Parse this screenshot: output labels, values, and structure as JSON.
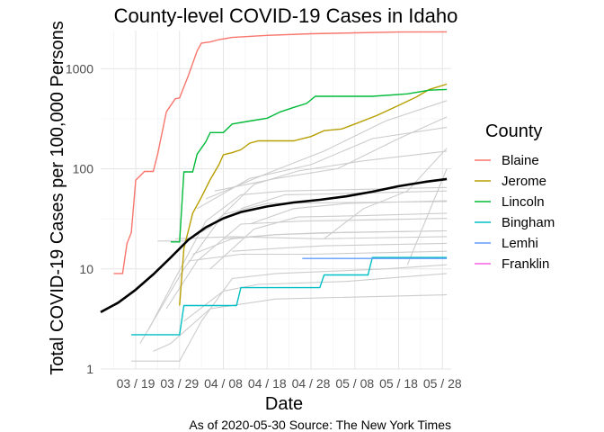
{
  "chart_data": {
    "type": "line",
    "title": "County-level COVID-19 Cases in Idaho",
    "xlabel": "Date",
    "ylabel": "Total COVID-19 Cases per 100,000 Persons",
    "y_scale": "log10",
    "ylim": [
      1,
      2400
    ],
    "y_ticks": [
      1,
      10,
      100,
      1000
    ],
    "y_tick_labels": [
      "1",
      "10",
      "100",
      "1000"
    ],
    "x_ticks": [
      "2020-03-19",
      "2020-03-29",
      "2020-04-08",
      "2020-04-18",
      "2020-04-28",
      "2020-05-08",
      "2020-05-18",
      "2020-05-28"
    ],
    "x_tick_labels": [
      "03 / 19",
      "03 / 29",
      "04 / 08",
      "04 / 18",
      "04 / 28",
      "05 / 08",
      "05 / 18",
      "05 / 28"
    ],
    "xlim": [
      "2020-03-11",
      "2020-05-30"
    ],
    "grid": true,
    "legend_title": "County",
    "legend_position": "right",
    "caption": "As of 2020-05-30 Source: The New York Times",
    "series": [
      {
        "name": "Blaine",
        "color": "#F8766D",
        "points": [
          [
            "2020-03-14",
            9
          ],
          [
            "2020-03-16",
            9
          ],
          [
            "2020-03-17",
            18
          ],
          [
            "2020-03-18",
            23
          ],
          [
            "2020-03-19",
            77
          ],
          [
            "2020-03-21",
            94
          ],
          [
            "2020-03-23",
            94
          ],
          [
            "2020-03-24",
            140
          ],
          [
            "2020-03-26",
            370
          ],
          [
            "2020-03-28",
            500
          ],
          [
            "2020-03-29",
            510
          ],
          [
            "2020-03-31",
            850
          ],
          [
            "2020-04-02",
            1500
          ],
          [
            "2020-04-03",
            1800
          ],
          [
            "2020-04-05",
            1850
          ],
          [
            "2020-04-07",
            1950
          ],
          [
            "2020-04-10",
            2050
          ],
          [
            "2020-04-18",
            2150
          ],
          [
            "2020-04-28",
            2230
          ],
          [
            "2020-05-08",
            2280
          ],
          [
            "2020-05-18",
            2320
          ],
          [
            "2020-05-29",
            2330
          ]
        ]
      },
      {
        "name": "Jerome",
        "color": "#B79F00",
        "points": [
          [
            "2020-03-29",
            4.3
          ],
          [
            "2020-03-30",
            16
          ],
          [
            "2020-04-01",
            36
          ],
          [
            "2020-04-03",
            52
          ],
          [
            "2020-04-05",
            78
          ],
          [
            "2020-04-07",
            110
          ],
          [
            "2020-04-08",
            138
          ],
          [
            "2020-04-10",
            145
          ],
          [
            "2020-04-12",
            155
          ],
          [
            "2020-04-14",
            180
          ],
          [
            "2020-04-16",
            190
          ],
          [
            "2020-04-24",
            190
          ],
          [
            "2020-04-28",
            210
          ],
          [
            "2020-05-01",
            240
          ],
          [
            "2020-05-05",
            250
          ],
          [
            "2020-05-08",
            280
          ],
          [
            "2020-05-13",
            340
          ],
          [
            "2020-05-18",
            430
          ],
          [
            "2020-05-22",
            520
          ],
          [
            "2020-05-25",
            620
          ],
          [
            "2020-05-29",
            700
          ]
        ]
      },
      {
        "name": "Lincoln",
        "color": "#00BA38",
        "points": [
          [
            "2020-03-27",
            18.6
          ],
          [
            "2020-03-29",
            18.6
          ],
          [
            "2020-03-30",
            93
          ],
          [
            "2020-04-01",
            93
          ],
          [
            "2020-04-02",
            140
          ],
          [
            "2020-04-04",
            186
          ],
          [
            "2020-04-05",
            230
          ],
          [
            "2020-04-08",
            230
          ],
          [
            "2020-04-10",
            280
          ],
          [
            "2020-04-14",
            300
          ],
          [
            "2020-04-18",
            320
          ],
          [
            "2020-04-21",
            370
          ],
          [
            "2020-04-24",
            410
          ],
          [
            "2020-04-27",
            450
          ],
          [
            "2020-04-29",
            530
          ],
          [
            "2020-05-12",
            530
          ],
          [
            "2020-05-20",
            560
          ],
          [
            "2020-05-25",
            610
          ],
          [
            "2020-05-29",
            620
          ]
        ]
      },
      {
        "name": "Bingham",
        "color": "#00BFC4",
        "points": [
          [
            "2020-03-18",
            2.2
          ],
          [
            "2020-03-29",
            2.2
          ],
          [
            "2020-03-30",
            4.3
          ],
          [
            "2020-04-11",
            4.3
          ],
          [
            "2020-04-12",
            6.5
          ],
          [
            "2020-04-30",
            6.5
          ],
          [
            "2020-05-01",
            8.7
          ],
          [
            "2020-05-11",
            8.7
          ],
          [
            "2020-05-12",
            13
          ],
          [
            "2020-05-29",
            13
          ]
        ]
      },
      {
        "name": "Lemhi",
        "color": "#619CFF",
        "points": [
          [
            "2020-04-26",
            12.7
          ],
          [
            "2020-05-29",
            12.7
          ]
        ]
      },
      {
        "name": "Franklin",
        "color": "#F564E3",
        "points": []
      }
    ],
    "state_trend": {
      "color": "#000000",
      "points": [
        [
          "2020-03-11",
          3.7
        ],
        [
          "2020-03-15",
          4.6
        ],
        [
          "2020-03-19",
          6.2
        ],
        [
          "2020-03-23",
          8.8
        ],
        [
          "2020-03-27",
          13
        ],
        [
          "2020-03-31",
          19.5
        ],
        [
          "2020-04-04",
          26
        ],
        [
          "2020-04-08",
          32
        ],
        [
          "2020-04-12",
          37
        ],
        [
          "2020-04-18",
          42
        ],
        [
          "2020-04-24",
          46
        ],
        [
          "2020-04-30",
          49
        ],
        [
          "2020-05-06",
          53
        ],
        [
          "2020-05-12",
          59
        ],
        [
          "2020-05-18",
          67
        ],
        [
          "2020-05-24",
          74
        ],
        [
          "2020-05-29",
          79
        ]
      ]
    },
    "other_counties": {
      "color": "#cccccc",
      "series": [
        [
          [
            "2020-03-24",
            19
          ],
          [
            "2020-03-30",
            19
          ],
          [
            "2020-04-05",
            26
          ],
          [
            "2020-04-15",
            70
          ],
          [
            "2020-04-25",
            95
          ],
          [
            "2020-05-10",
            120
          ],
          [
            "2020-05-29",
            150
          ]
        ],
        [
          [
            "2020-04-01",
            14
          ],
          [
            "2020-04-10",
            20
          ],
          [
            "2020-04-20",
            22
          ],
          [
            "2020-05-01",
            23
          ],
          [
            "2020-05-29",
            24
          ]
        ],
        [
          [
            "2020-03-22",
            2.5
          ],
          [
            "2020-03-28",
            8
          ],
          [
            "2020-04-04",
            30
          ],
          [
            "2020-04-12",
            55
          ],
          [
            "2020-04-22",
            60
          ],
          [
            "2020-05-08",
            62
          ],
          [
            "2020-05-29",
            65
          ]
        ],
        [
          [
            "2020-03-20",
            1.8
          ],
          [
            "2020-03-30",
            10
          ],
          [
            "2020-04-08",
            35
          ],
          [
            "2020-04-18",
            45
          ],
          [
            "2020-05-05",
            46
          ],
          [
            "2020-05-29",
            47
          ]
        ],
        [
          [
            "2020-04-05",
            10
          ],
          [
            "2020-04-15",
            25
          ],
          [
            "2020-04-25",
            33
          ],
          [
            "2020-05-10",
            34
          ],
          [
            "2020-05-29",
            36
          ]
        ],
        [
          [
            "2020-03-18",
            1.2
          ],
          [
            "2020-03-29",
            1.2
          ],
          [
            "2020-04-03",
            3
          ],
          [
            "2020-04-10",
            8
          ],
          [
            "2020-04-20",
            9
          ],
          [
            "2020-05-15",
            10
          ],
          [
            "2020-05-29",
            11
          ]
        ],
        [
          [
            "2020-04-10",
            15
          ],
          [
            "2020-04-20",
            16
          ],
          [
            "2020-05-01",
            17
          ],
          [
            "2020-05-29",
            18
          ]
        ],
        [
          [
            "2020-03-26",
            4
          ],
          [
            "2020-04-02",
            12
          ],
          [
            "2020-04-12",
            28
          ],
          [
            "2020-04-26",
            30
          ],
          [
            "2020-05-15",
            31
          ],
          [
            "2020-05-29",
            32
          ]
        ],
        [
          [
            "2020-04-08",
            20
          ],
          [
            "2020-04-20",
            22
          ],
          [
            "2020-05-05",
            23
          ],
          [
            "2020-05-29",
            24
          ]
        ],
        [
          [
            "2020-03-30",
            3
          ],
          [
            "2020-04-08",
            6
          ],
          [
            "2020-04-16",
            7
          ],
          [
            "2020-05-06",
            7.5
          ],
          [
            "2020-05-29",
            9
          ]
        ],
        [
          [
            "2020-04-02",
            40
          ],
          [
            "2020-04-14",
            80
          ],
          [
            "2020-04-28",
            110
          ],
          [
            "2020-05-12",
            200
          ],
          [
            "2020-05-29",
            260
          ]
        ],
        [
          [
            "2020-04-04",
            50
          ],
          [
            "2020-04-18",
            90
          ],
          [
            "2020-05-01",
            150
          ],
          [
            "2020-05-15",
            300
          ],
          [
            "2020-05-29",
            480
          ]
        ],
        [
          [
            "2020-04-06",
            60
          ],
          [
            "2020-04-20",
            80
          ],
          [
            "2020-05-04",
            100
          ],
          [
            "2020-05-18",
            200
          ],
          [
            "2020-05-29",
            330
          ]
        ],
        [
          [
            "2020-04-12",
            40
          ],
          [
            "2020-04-22",
            55
          ],
          [
            "2020-05-02",
            56
          ],
          [
            "2020-05-29",
            60
          ]
        ],
        [
          [
            "2020-03-28",
            20
          ],
          [
            "2020-04-10",
            21
          ],
          [
            "2020-04-30",
            20
          ],
          [
            "2020-05-29",
            21
          ]
        ],
        [
          [
            "2020-03-31",
            12
          ],
          [
            "2020-04-12",
            14
          ],
          [
            "2020-04-28",
            14
          ],
          [
            "2020-05-29",
            15
          ]
        ],
        [
          [
            "2020-03-23",
            1.5
          ],
          [
            "2020-03-27",
            1.8
          ],
          [
            "2020-04-05",
            4
          ],
          [
            "2020-04-20",
            5
          ],
          [
            "2020-05-29",
            5.5
          ]
        ],
        [
          [
            "2020-04-14",
            28
          ],
          [
            "2020-04-24",
            40
          ],
          [
            "2020-05-06",
            45
          ],
          [
            "2020-05-29",
            48
          ]
        ],
        [
          [
            "2020-05-20",
            11
          ],
          [
            "2020-05-29",
            100
          ]
        ],
        [
          [
            "2020-05-01",
            20
          ],
          [
            "2020-05-10",
            40
          ],
          [
            "2020-05-20",
            60
          ],
          [
            "2020-05-29",
            160
          ]
        ]
      ]
    }
  }
}
